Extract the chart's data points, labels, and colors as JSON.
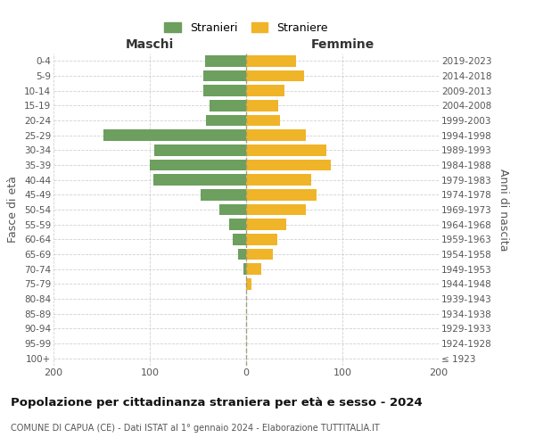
{
  "age_groups": [
    "100+",
    "95-99",
    "90-94",
    "85-89",
    "80-84",
    "75-79",
    "70-74",
    "65-69",
    "60-64",
    "55-59",
    "50-54",
    "45-49",
    "40-44",
    "35-39",
    "30-34",
    "25-29",
    "20-24",
    "15-19",
    "10-14",
    "5-9",
    "0-4"
  ],
  "birth_years": [
    "≤ 1923",
    "1924-1928",
    "1929-1933",
    "1934-1938",
    "1939-1943",
    "1944-1948",
    "1949-1953",
    "1954-1958",
    "1959-1963",
    "1964-1968",
    "1969-1973",
    "1974-1978",
    "1979-1983",
    "1984-1988",
    "1989-1993",
    "1994-1998",
    "1999-2003",
    "2004-2008",
    "2009-2013",
    "2014-2018",
    "2019-2023"
  ],
  "maschi": [
    0,
    0,
    0,
    0,
    0,
    0,
    3,
    8,
    14,
    18,
    28,
    47,
    96,
    100,
    95,
    148,
    42,
    38,
    44,
    44,
    43
  ],
  "femmine": [
    0,
    0,
    0,
    0,
    0,
    6,
    16,
    28,
    32,
    42,
    62,
    73,
    68,
    88,
    83,
    62,
    35,
    33,
    40,
    60,
    52
  ],
  "maschi_color": "#6d9f5e",
  "femmine_color": "#f0b429",
  "background_color": "#ffffff",
  "grid_color": "#cccccc",
  "title": "Popolazione per cittadinanza straniera per età e sesso - 2024",
  "subtitle": "COMUNE DI CAPUA (CE) - Dati ISTAT al 1° gennaio 2024 - Elaborazione TUTTITALIA.IT",
  "xlabel_left": "Maschi",
  "xlabel_right": "Femmine",
  "ylabel_left": "Fasce di età",
  "ylabel_right": "Anni di nascita",
  "legend_maschi": "Stranieri",
  "legend_femmine": "Straniere",
  "xlim": 200
}
